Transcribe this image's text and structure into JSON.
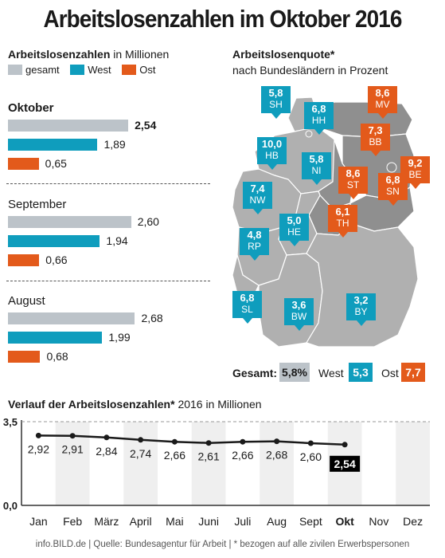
{
  "title": "Arbeitslosenzahlen im Oktober 2016",
  "colors": {
    "gesamt": "#bcc3c9",
    "west": "#0f9dbd",
    "ost": "#e35a1b",
    "map_gray": "#b0b0b0",
    "map_dark": "#8f8f8f"
  },
  "bars_panel": {
    "heading_bold": "Arbeitslosenzahlen",
    "heading_rest": " in Millionen",
    "legend": [
      "gesamt",
      "West",
      "Ost"
    ]
  },
  "map_panel": {
    "heading_bold": "Arbeitslosenquote*",
    "heading_sub": "nach Bundesländern in Prozent",
    "states": [
      {
        "code": "SH",
        "value": "5,8",
        "group": "west"
      },
      {
        "code": "HH",
        "value": "6,8",
        "group": "west"
      },
      {
        "code": "MV",
        "value": "8,6",
        "group": "ost"
      },
      {
        "code": "HB",
        "value": "10,0",
        "group": "west"
      },
      {
        "code": "NI",
        "value": "5,8",
        "group": "west"
      },
      {
        "code": "BB",
        "value": "7,3",
        "group": "ost"
      },
      {
        "code": "BE",
        "value": "9,2",
        "group": "ost"
      },
      {
        "code": "ST",
        "value": "8,6",
        "group": "ost"
      },
      {
        "code": "NW",
        "value": "7,4",
        "group": "west"
      },
      {
        "code": "SN",
        "value": "6,8",
        "group": "ost"
      },
      {
        "code": "HE",
        "value": "5,0",
        "group": "west"
      },
      {
        "code": "TH",
        "value": "6,1",
        "group": "ost"
      },
      {
        "code": "RP",
        "value": "4,8",
        "group": "west"
      },
      {
        "code": "SL",
        "value": "6,8",
        "group": "west"
      },
      {
        "code": "BW",
        "value": "3,6",
        "group": "west"
      },
      {
        "code": "BY",
        "value": "3,2",
        "group": "west"
      }
    ],
    "totals": {
      "gesamt_label": "Gesamt:",
      "gesamt_value": "5,8%",
      "west_label": "West",
      "west_value": "5,3",
      "ost_label": "Ost",
      "ost_value": "7,7"
    }
  },
  "line_panel": {
    "heading_bold": "Verlauf der Arbeitslosenzahlen*",
    "heading_rest": " 2016 in Millionen"
  },
  "footer": "info.BILD.de | Quelle: Bundesagentur für Arbeit | * bezogen auf alle zivilen Erwerbspersonen",
  "chart_data": [
    {
      "type": "bar",
      "orientation": "horizontal",
      "categories": [
        "Oktober",
        "September",
        "August"
      ],
      "series": [
        {
          "name": "gesamt",
          "values": [
            2.54,
            2.6,
            2.68
          ],
          "labels": [
            "2,54",
            "2,60",
            "2,68"
          ]
        },
        {
          "name": "West",
          "values": [
            1.89,
            1.94,
            1.99
          ],
          "labels": [
            "1,89",
            "1,94",
            "1,99"
          ]
        },
        {
          "name": "Ost",
          "values": [
            0.65,
            0.66,
            0.68
          ],
          "labels": [
            "0,65",
            "0,66",
            "0,68"
          ]
        }
      ],
      "highlight_category": "Oktober"
    },
    {
      "type": "line",
      "x": [
        "Jan",
        "Feb",
        "März",
        "April",
        "Mai",
        "Juni",
        "Juli",
        "Aug",
        "Sept",
        "Okt",
        "Nov",
        "Dez"
      ],
      "values": [
        2.92,
        2.91,
        2.84,
        2.74,
        2.66,
        2.61,
        2.66,
        2.68,
        2.6,
        2.54
      ],
      "labels": [
        "2,92",
        "2,91",
        "2,84",
        "2,74",
        "2,66",
        "2,61",
        "2,66",
        "2,68",
        "2,60",
        "2,54"
      ],
      "ylim": [
        0,
        3.5
      ],
      "ytick_labels": [
        "0,0",
        "3,5"
      ],
      "highlight": "Okt"
    }
  ]
}
